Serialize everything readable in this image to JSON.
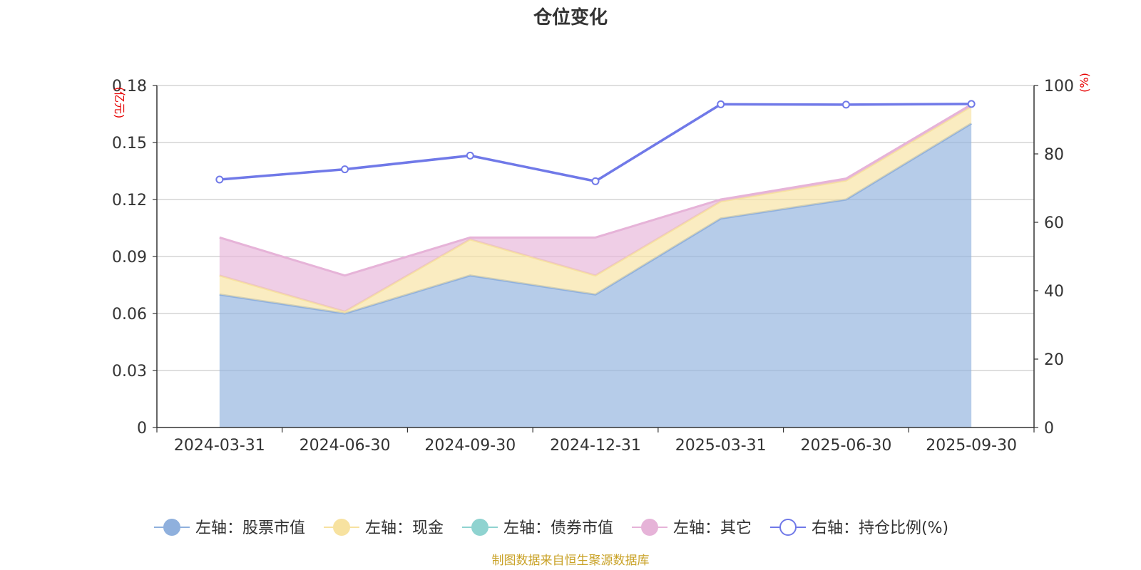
{
  "chart_data": {
    "type": "area",
    "title": "仓位变化",
    "categories": [
      "2024-03-31",
      "2024-06-30",
      "2024-09-30",
      "2024-12-31",
      "2025-03-31",
      "2025-06-30",
      "2025-09-30"
    ],
    "left_axis": {
      "name": "(亿元)",
      "ylim": [
        0,
        0.18
      ],
      "ticks": [
        "0",
        "0.03",
        "0.06",
        "0.09",
        "0.12",
        "0.15",
        "0.18"
      ]
    },
    "right_axis": {
      "name": "(%)",
      "ylim": [
        0,
        100
      ],
      "ticks": [
        "0",
        "20",
        "40",
        "60",
        "80",
        "100"
      ]
    },
    "stacked": true,
    "grid": true,
    "legend_position": "bottom",
    "series": [
      {
        "name": "左轴：股票市值",
        "axis": "left",
        "type": "area",
        "color": "#8fb0dd",
        "values": [
          0.07,
          0.06,
          0.08,
          0.07,
          0.11,
          0.12,
          0.16
        ]
      },
      {
        "name": "左轴：现金",
        "axis": "left",
        "type": "area",
        "color": "#f7e2a0",
        "values": [
          0.01,
          0.001,
          0.019,
          0.01,
          0.009,
          0.01,
          0.009
        ]
      },
      {
        "name": "左轴：债券市值",
        "axis": "left",
        "type": "area",
        "color": "#8fd3d0",
        "values": [
          0,
          0,
          0,
          0,
          0,
          0,
          0
        ]
      },
      {
        "name": "左轴：其它",
        "axis": "left",
        "type": "area",
        "color": "#e6b3d8",
        "values": [
          0.02,
          0.019,
          0.001,
          0.02,
          0.001,
          0.001,
          0.001
        ]
      },
      {
        "name": "右轴：持仓比例(%)",
        "axis": "right",
        "type": "line",
        "color": "#7079e8",
        "values": [
          72.5,
          75.5,
          79.5,
          72.0,
          94.5,
          94.4,
          94.6
        ]
      }
    ],
    "source_note": "制图数据来自恒生聚源数据库"
  }
}
